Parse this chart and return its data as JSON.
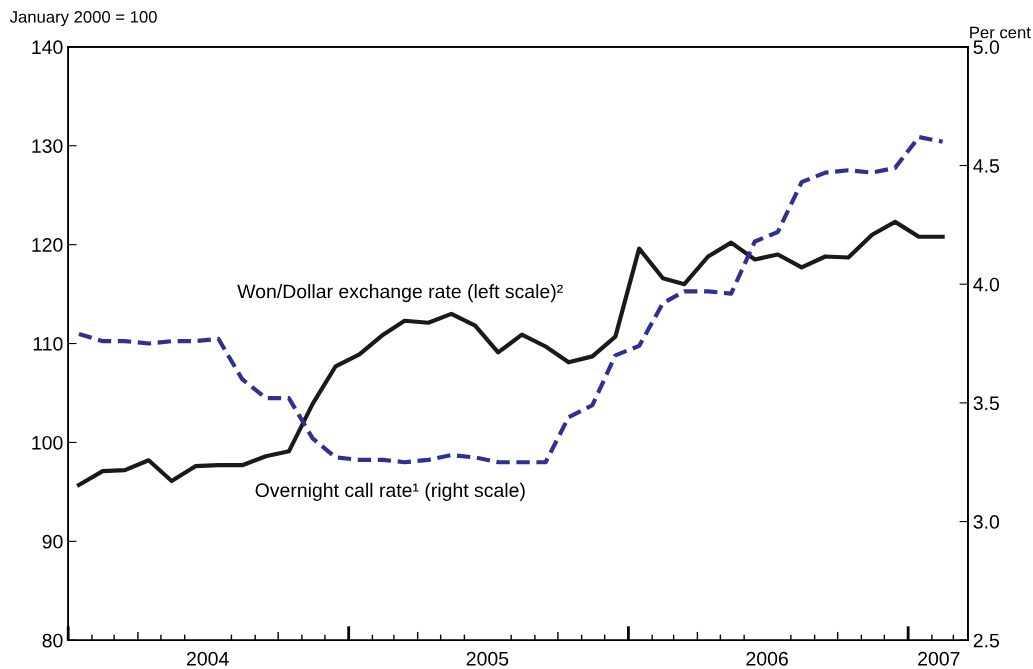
{
  "chart_data": {
    "type": "line",
    "ylabel": "January 2000 = 100",
    "y2label": "Per cent",
    "x": [
      "2004-01-15",
      "2004-02-15",
      "2004-03-15",
      "2004-04-15",
      "2004-05-15",
      "2004-06-15",
      "2004-07-15",
      "2004-08-15",
      "2004-09-15",
      "2004-10-15",
      "2004-11-15",
      "2004-12-15",
      "2005-01-15",
      "2005-02-15",
      "2005-03-15",
      "2005-04-15",
      "2005-05-15",
      "2005-06-15",
      "2005-07-15",
      "2005-08-15",
      "2005-09-15",
      "2005-10-15",
      "2005-11-15",
      "2005-12-15",
      "2006-01-15",
      "2006-02-15",
      "2006-03-15",
      "2006-04-15",
      "2006-05-15",
      "2006-06-15",
      "2006-07-15",
      "2006-08-15",
      "2006-09-15",
      "2006-10-15",
      "2006-11-15",
      "2006-12-15",
      "2007-01-15",
      "2007-02-15"
    ],
    "series": [
      {
        "name": "Won/Dollar exchange rate (left scale)²",
        "color": "#1a1a1a",
        "line_style": "solid",
        "values": [
          95.7,
          97.1,
          97.2,
          98.2,
          96.1,
          97.6,
          97.7,
          97.7,
          98.6,
          99.1,
          103.9,
          107.7,
          108.9,
          110.9,
          112.3,
          112.1,
          113.0,
          111.8,
          109.1,
          110.9,
          109.7,
          108.1,
          108.7,
          110.7,
          119.6,
          116.6,
          116.0,
          118.8,
          120.2,
          118.5,
          119.0,
          117.7,
          118.8,
          118.7,
          121.0,
          122.3,
          120.8,
          120.8
        ]
      },
      {
        "name": "Overnight call rate¹ (right scale)",
        "color": "#2e3192",
        "line_style": "dashed",
        "axis": "y2",
        "values": [
          3.79,
          3.76,
          3.76,
          3.75,
          3.76,
          3.76,
          3.77,
          3.6,
          3.52,
          3.52,
          3.35,
          3.27,
          3.26,
          3.26,
          3.25,
          3.26,
          3.28,
          3.27,
          3.25,
          3.25,
          3.25,
          3.44,
          3.49,
          3.7,
          3.74,
          3.92,
          3.97,
          3.97,
          3.96,
          4.18,
          4.22,
          4.43,
          4.47,
          4.48,
          4.47,
          4.49,
          4.62,
          4.6
        ]
      }
    ],
    "xlim": [
      "2004-01-01",
      "2007-03-20"
    ],
    "xticks": [
      {
        "value": "2004-01-01",
        "label": null
      },
      {
        "value": "2004-02-01",
        "label": null
      },
      {
        "value": "2004-03-01",
        "label": null
      },
      {
        "value": "2004-04-01",
        "label": null
      },
      {
        "value": "2004-05-01",
        "label": null
      },
      {
        "value": "2004-06-01",
        "label": null
      },
      {
        "value": "2004-07-01",
        "label": "2004"
      },
      {
        "value": "2004-08-01",
        "label": null
      },
      {
        "value": "2004-09-01",
        "label": null
      },
      {
        "value": "2004-10-01",
        "label": null
      },
      {
        "value": "2004-11-01",
        "label": null
      },
      {
        "value": "2004-12-01",
        "label": null
      },
      {
        "value": "2005-01-01",
        "label": null
      },
      {
        "value": "2005-02-01",
        "label": null
      },
      {
        "value": "2005-03-01",
        "label": null
      },
      {
        "value": "2005-04-01",
        "label": null
      },
      {
        "value": "2005-05-01",
        "label": null
      },
      {
        "value": "2005-06-01",
        "label": null
      },
      {
        "value": "2005-07-01",
        "label": "2005"
      },
      {
        "value": "2005-08-01",
        "label": null
      },
      {
        "value": "2005-09-01",
        "label": null
      },
      {
        "value": "2005-10-01",
        "label": null
      },
      {
        "value": "2005-11-01",
        "label": null
      },
      {
        "value": "2005-12-01",
        "label": null
      },
      {
        "value": "2006-01-01",
        "label": null
      },
      {
        "value": "2006-02-01",
        "label": null
      },
      {
        "value": "2006-03-01",
        "label": null
      },
      {
        "value": "2006-04-01",
        "label": null
      },
      {
        "value": "2006-05-01",
        "label": null
      },
      {
        "value": "2006-06-01",
        "label": null
      },
      {
        "value": "2006-07-01",
        "label": "2006"
      },
      {
        "value": "2006-08-01",
        "label": null
      },
      {
        "value": "2006-09-01",
        "label": null
      },
      {
        "value": "2006-10-01",
        "label": null
      },
      {
        "value": "2006-11-01",
        "label": null
      },
      {
        "value": "2006-12-01",
        "label": null
      },
      {
        "value": "2007-01-01",
        "label": null
      },
      {
        "value": "2007-02-01",
        "label": null
      },
      {
        "value": "2007-02-10",
        "label": "2007"
      },
      {
        "value": "2007-03-01",
        "label": null
      }
    ],
    "ylim": [
      80,
      140
    ],
    "yticks": [
      80,
      90,
      100,
      110,
      120,
      130,
      140
    ],
    "y2lim": [
      2.5,
      5.0
    ],
    "y2ticks": [
      {
        "value": 2.5,
        "label": "2.5"
      },
      {
        "value": 3.0,
        "label": "3.0"
      },
      {
        "value": 3.5,
        "label": "3.5"
      },
      {
        "value": 4.0,
        "label": "4.0"
      },
      {
        "value": 4.5,
        "label": "4.5"
      },
      {
        "value": 5.0,
        "label": "5.0"
      }
    ],
    "grid": false,
    "legend": false
  }
}
